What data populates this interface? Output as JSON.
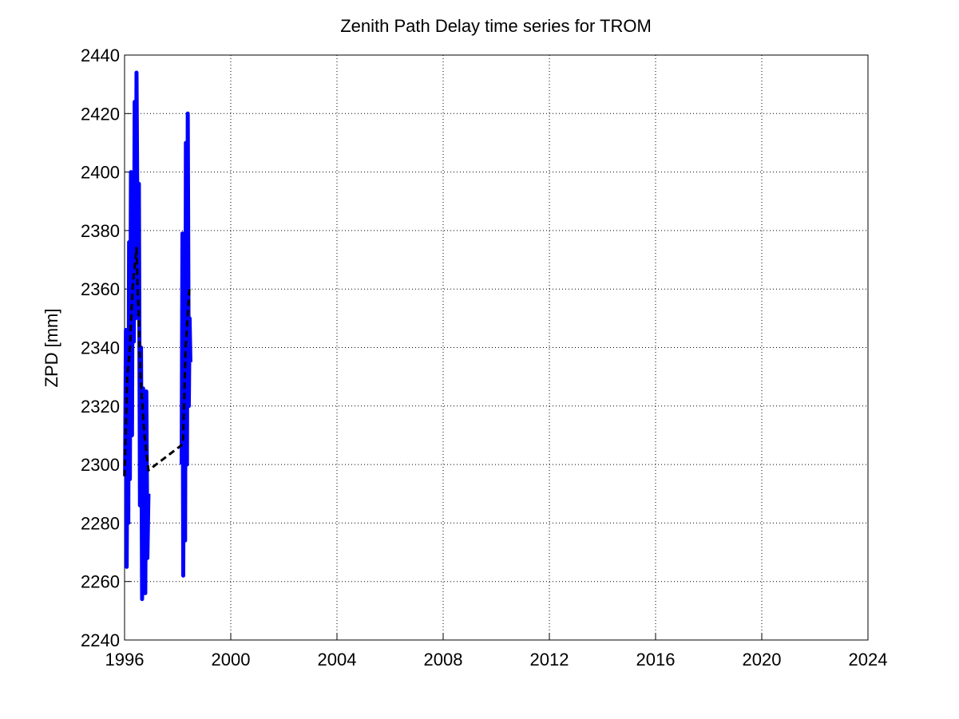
{
  "chart_data": {
    "type": "line",
    "title": "Zenith Path Delay time series for TROM",
    "y_label": "ZPD [mm]",
    "xlim": [
      1996,
      2024
    ],
    "xticks": [
      1996,
      2000,
      2004,
      2008,
      2012,
      2016,
      2020,
      2024
    ],
    "ylim": [
      2240,
      2440
    ],
    "yticks": [
      2240,
      2260,
      2280,
      2300,
      2320,
      2340,
      2360,
      2380,
      2400,
      2420,
      2440
    ],
    "grid": true,
    "series": [
      {
        "color": "#0000ff",
        "style": "solid",
        "x": [
          1996.02,
          1996.05,
          1996.08,
          1996.11,
          1996.14,
          1996.17,
          1996.2,
          1996.24,
          1996.28,
          1996.31,
          1996.35,
          1996.38,
          1996.42,
          1996.45,
          1996.5,
          1996.54,
          1996.58,
          1996.62,
          1996.66,
          1996.7,
          1996.74,
          1996.78,
          1996.82,
          1996.86,
          1996.9,
          1997.5,
          1998.15,
          1998.18,
          1998.21,
          1998.25,
          1998.28,
          1998.31,
          1998.35,
          1998.38,
          1998.42,
          1998.45,
          1998.48
        ],
        "values": [
          2296,
          2346,
          2265,
          2330,
          2280,
          2376,
          2295,
          2400,
          2310,
          2388,
          2342,
          2424,
          2350,
          2434,
          2360,
          2396,
          2286,
          2340,
          2254,
          2326,
          2300,
          2256,
          2325,
          2268,
          2290,
          null,
          2300,
          2379,
          2262,
          2370,
          2274,
          2410,
          2300,
          2420,
          2320,
          2350,
          2335
        ]
      },
      {
        "color": "#000000",
        "style": "dashed",
        "x": [
          1996.0,
          1996.1,
          1996.2,
          1996.3,
          1996.45,
          1996.6,
          1996.75,
          1996.9,
          1998.2,
          1998.3,
          1998.45
        ],
        "values": [
          2296,
          2330,
          2340,
          2360,
          2374,
          2330,
          2310,
          2298,
          2307,
          2340,
          2361
        ]
      }
    ]
  }
}
